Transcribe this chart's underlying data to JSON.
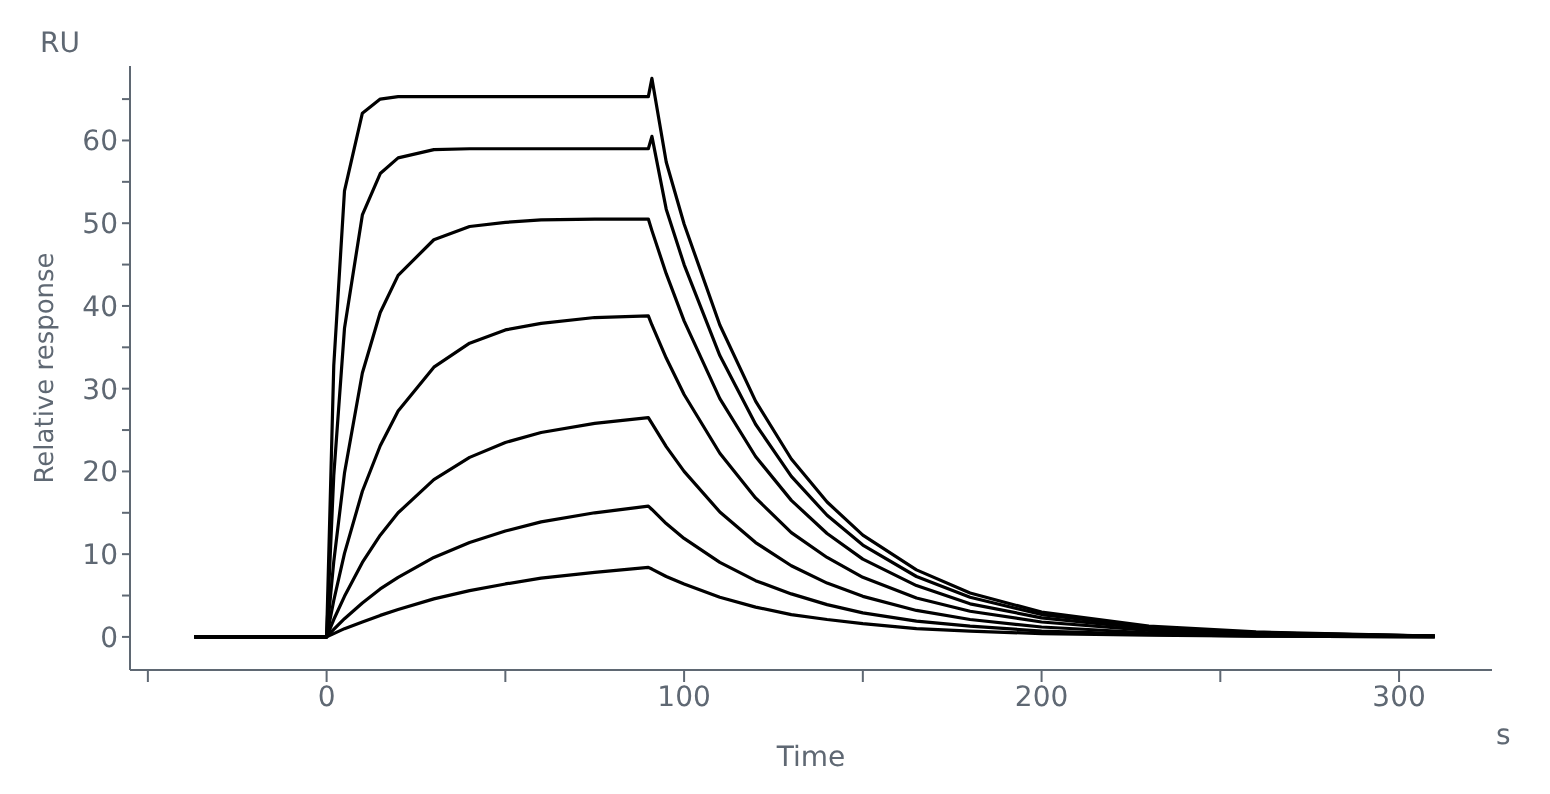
{
  "chart_data": {
    "type": "line",
    "xlabel": "Time",
    "ylabel": "Relative response",
    "annotations": [
      "RU",
      "s"
    ],
    "x": [
      -37,
      0,
      2,
      5,
      10,
      15,
      20,
      30,
      40,
      50,
      60,
      75,
      90,
      91,
      95,
      100,
      110,
      120,
      130,
      140,
      150,
      165,
      180,
      200,
      230,
      260,
      310
    ],
    "series": [
      {
        "color": "#000000",
        "values": [
          0,
          0,
          32.8,
          53.9,
          63.3,
          65,
          65.3,
          65.3,
          65.3,
          65.3,
          65.3,
          65.3,
          65.3,
          67.5,
          57.4,
          49.9,
          37.7,
          28.5,
          21.5,
          16.3,
          12.3,
          8.1,
          5.3,
          3.0,
          1.3,
          0.6,
          0.1
        ]
      },
      {
        "color": "#000000",
        "values": [
          0,
          0,
          19.5,
          37.3,
          51,
          56,
          57.9,
          58.9,
          59,
          59,
          59,
          59,
          59,
          60.5,
          51.7,
          45,
          34,
          25.7,
          19.4,
          14.7,
          11.1,
          7.3,
          4.8,
          2.7,
          1.2,
          0.5,
          0.1
        ]
      },
      {
        "color": "#000000",
        "values": [
          0,
          0,
          9.1,
          19.8,
          31.9,
          39.2,
          43.7,
          48,
          49.6,
          50.1,
          50.4,
          50.5,
          50.5,
          49.1,
          43.9,
          38.2,
          28.8,
          21.8,
          16.5,
          12.5,
          9.4,
          6.2,
          4,
          2.3,
          1,
          0.5,
          0.1
        ]
      },
      {
        "color": "#000000",
        "values": [
          0,
          0,
          4.4,
          10.1,
          17.6,
          23.1,
          27.3,
          32.6,
          35.5,
          37.1,
          37.9,
          38.6,
          38.8,
          37.7,
          33.7,
          29.3,
          22.2,
          16.8,
          12.6,
          9.6,
          7.2,
          4.7,
          3.1,
          1.8,
          0.8,
          0.3,
          0.1
        ]
      },
      {
        "color": "#000000",
        "values": [
          0,
          0,
          2.1,
          4.9,
          9,
          12.3,
          15,
          19,
          21.7,
          23.5,
          24.7,
          25.8,
          26.5,
          25.8,
          23,
          20,
          15.1,
          11.4,
          8.6,
          6.5,
          4.9,
          3.2,
          2.1,
          1.2,
          0.5,
          0.2,
          0.1
        ]
      },
      {
        "color": "#000000",
        "values": [
          0,
          0,
          0.9,
          2.2,
          4.1,
          5.8,
          7.2,
          9.6,
          11.4,
          12.8,
          13.9,
          15,
          15.8,
          15.4,
          13.7,
          11.9,
          9,
          6.8,
          5.2,
          3.9,
          2.9,
          1.9,
          1.3,
          0.7,
          0.3,
          0.1,
          0
        ]
      },
      {
        "color": "#000000",
        "values": [
          0,
          0,
          0.4,
          1,
          1.8,
          2.6,
          3.3,
          4.6,
          5.6,
          6.4,
          7.1,
          7.8,
          8.4,
          8.2,
          7.3,
          6.4,
          4.8,
          3.6,
          2.7,
          2.1,
          1.6,
          1,
          0.7,
          0.4,
          0.2,
          0.1,
          0
        ]
      }
    ],
    "xlim": [
      -55,
      326
    ],
    "xticks": [
      {
        "value": -50,
        "label": null
      },
      0,
      {
        "value": 50,
        "label": null
      },
      100,
      {
        "value": 150,
        "label": null
      },
      200,
      {
        "value": 250,
        "label": null
      },
      300
    ],
    "ylim": [
      -4,
      69
    ],
    "yticks": [
      0,
      {
        "value": 5,
        "label": null
      },
      10,
      {
        "value": 15,
        "label": null
      },
      20,
      {
        "value": 25,
        "label": null
      },
      30,
      {
        "value": 35,
        "label": null
      },
      40,
      {
        "value": 45,
        "label": null
      },
      50,
      {
        "value": 55,
        "label": null
      },
      60,
      {
        "value": 65,
        "label": null
      }
    ],
    "grid": false,
    "legend": false,
    "marker": "none",
    "line_style": "solid"
  }
}
